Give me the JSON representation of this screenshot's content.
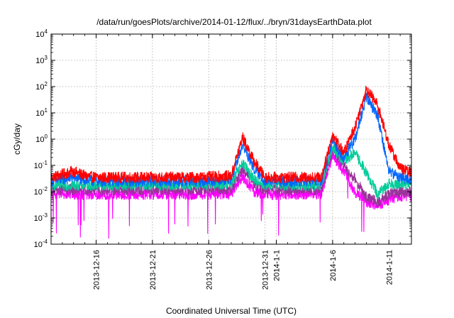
{
  "chart_data": {
    "type": "line",
    "title": "/data/run/goesPlots/archive/2014-01-12/flux/../bryn/31daysEarthData.plot",
    "xlabel": "Coordinated Universal Time (UTC)",
    "ylabel": "cGy/day",
    "yscale": "log",
    "ylim": [
      0.0001,
      10000
    ],
    "xlim": [
      "2013-12-12",
      "2014-01-13"
    ],
    "grid": true,
    "legend": "none",
    "x_ticks": [
      {
        "date": "2013-12-16",
        "label": "2013-12-16"
      },
      {
        "date": "2013-12-21",
        "label": "2013-12-21"
      },
      {
        "date": "2013-12-26",
        "label": "2013-12-26"
      },
      {
        "date": "2013-12-31",
        "label": "2013-12-31"
      },
      {
        "date": "2014-01-01",
        "label": "2014-1-1"
      },
      {
        "date": "2014-01-06",
        "label": "2014-1-6"
      },
      {
        "date": "2014-01-11",
        "label": "2014-1-11"
      }
    ],
    "y_ticks": [
      {
        "value": 0.0001,
        "base": "10",
        "exp": "-4"
      },
      {
        "value": 0.001,
        "base": "10",
        "exp": "-3"
      },
      {
        "value": 0.01,
        "base": "10",
        "exp": "-2"
      },
      {
        "value": 0.1,
        "base": "10",
        "exp": "-1"
      },
      {
        "value": 1,
        "base": "10",
        "exp": "0"
      },
      {
        "value": 10,
        "base": "10",
        "exp": "1"
      },
      {
        "value": 100,
        "base": "10",
        "exp": "2"
      },
      {
        "value": 1000,
        "base": "10",
        "exp": "3"
      },
      {
        "value": 10000,
        "base": "10",
        "exp": "4"
      }
    ],
    "series": [
      {
        "color": "#ff0000",
        "x": [
          "2013-12-12",
          "2013-12-14",
          "2013-12-15",
          "2013-12-16",
          "2013-12-20",
          "2013-12-25",
          "2013-12-28",
          "2013-12-29",
          "2013-12-30",
          "2013-12-31",
          "2014-01-03",
          "2014-01-05",
          "2014-01-06",
          "2014-01-07",
          "2014-01-08",
          "2014-01-09",
          "2014-01-10",
          "2014-01-11",
          "2014-01-12",
          "2014-01-13"
        ],
        "y": [
          0.035,
          0.06,
          0.04,
          0.035,
          0.035,
          0.035,
          0.04,
          1.2,
          0.15,
          0.035,
          0.035,
          0.035,
          1.5,
          0.3,
          3,
          80,
          20,
          0.6,
          0.08,
          0.05
        ]
      },
      {
        "color": "#0066ff",
        "x": [
          "2013-12-12",
          "2013-12-14",
          "2013-12-15",
          "2013-12-16",
          "2013-12-20",
          "2013-12-25",
          "2013-12-28",
          "2013-12-29",
          "2013-12-30",
          "2013-12-31",
          "2014-01-03",
          "2014-01-05",
          "2014-01-06",
          "2014-01-07",
          "2014-01-08",
          "2014-01-09",
          "2014-01-10",
          "2014-01-11",
          "2014-01-12",
          "2014-01-13"
        ],
        "y": [
          0.025,
          0.035,
          0.028,
          0.025,
          0.025,
          0.025,
          0.03,
          0.6,
          0.08,
          0.025,
          0.025,
          0.025,
          0.8,
          0.2,
          1,
          40,
          8,
          0.06,
          0.035,
          0.03
        ]
      },
      {
        "color": "#00cc99",
        "x": [
          "2013-12-12",
          "2013-12-16",
          "2013-12-20",
          "2013-12-25",
          "2013-12-28",
          "2013-12-29",
          "2013-12-30",
          "2013-12-31",
          "2014-01-03",
          "2014-01-05",
          "2014-01-06",
          "2014-01-07",
          "2014-01-08",
          "2014-01-09",
          "2014-01-10",
          "2014-01-11",
          "2014-01-12",
          "2014-01-13"
        ],
        "y": [
          0.018,
          0.018,
          0.018,
          0.018,
          0.02,
          0.12,
          0.03,
          0.018,
          0.018,
          0.018,
          0.5,
          0.15,
          0.3,
          0.05,
          0.008,
          0.02,
          0.02,
          0.02
        ]
      },
      {
        "color": "#993399",
        "x": [
          "2013-12-12",
          "2013-12-16",
          "2013-12-20",
          "2013-12-25",
          "2013-12-28",
          "2013-12-29",
          "2013-12-30",
          "2013-12-31",
          "2014-01-03",
          "2014-01-05",
          "2014-01-06",
          "2014-01-07",
          "2014-01-08",
          "2014-01-09",
          "2014-01-10",
          "2014-01-11",
          "2014-01-12",
          "2014-01-13"
        ],
        "y": [
          0.012,
          0.012,
          0.012,
          0.012,
          0.012,
          0.08,
          0.02,
          0.012,
          0.012,
          0.012,
          0.4,
          0.1,
          0.03,
          0.006,
          0.004,
          0.008,
          0.01,
          0.01
        ]
      },
      {
        "color": "#ff00ff",
        "x": [
          "2013-12-12",
          "2013-12-16",
          "2013-12-20",
          "2013-12-25",
          "2013-12-28",
          "2013-12-29",
          "2013-12-30",
          "2013-12-31",
          "2014-01-03",
          "2014-01-05",
          "2014-01-06",
          "2014-01-07",
          "2014-01-08",
          "2014-01-09",
          "2014-01-10",
          "2014-01-11",
          "2014-01-12",
          "2014-01-13"
        ],
        "y": [
          0.008,
          0.008,
          0.008,
          0.008,
          0.008,
          0.04,
          0.01,
          0.008,
          0.008,
          0.008,
          0.25,
          0.06,
          0.01,
          0.004,
          0.003,
          0.005,
          0.007,
          0.007
        ]
      }
    ]
  }
}
